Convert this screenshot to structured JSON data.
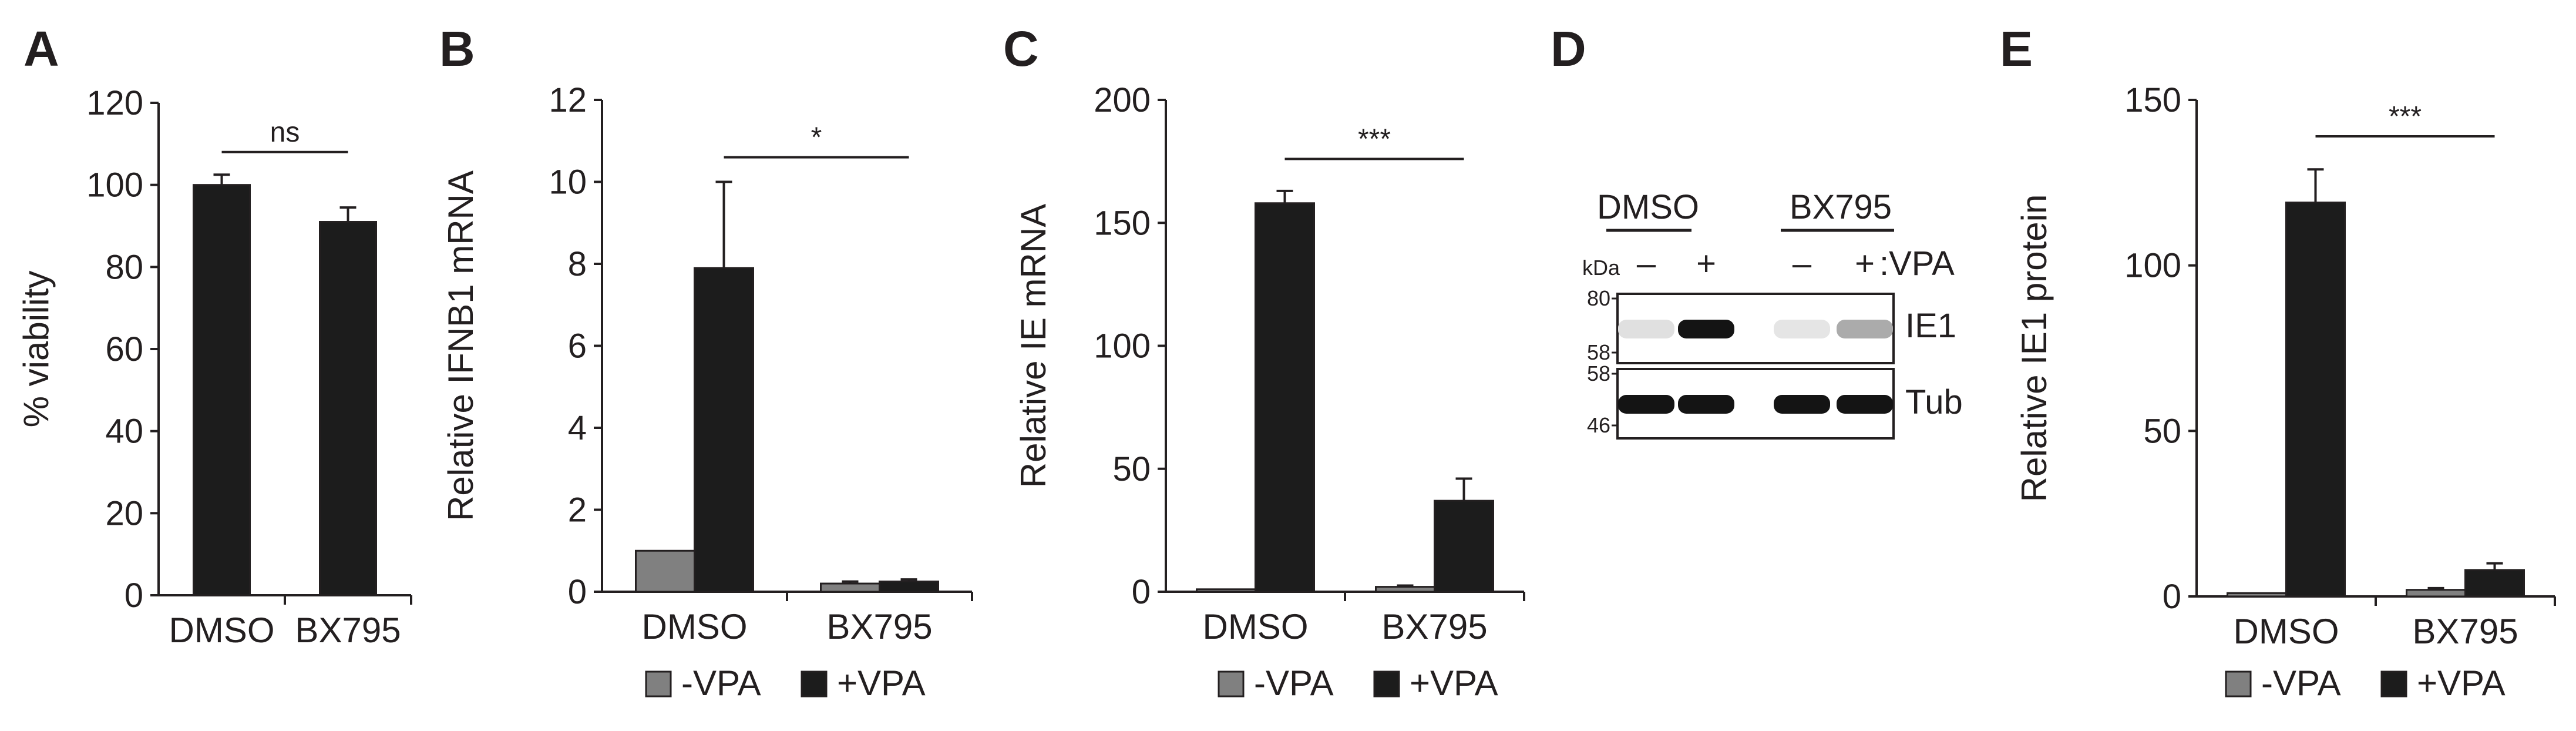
{
  "colors": {
    "plus_vpa": "#1c1c1c",
    "minus_vpa": "#808080",
    "axis": "#231f20",
    "background": "#ffffff"
  },
  "panels": {
    "A": {
      "label": "A"
    },
    "B": {
      "label": "B",
      "legend": [
        "-VPA",
        "+VPA"
      ]
    },
    "C": {
      "label": "C",
      "legend": [
        "-VPA",
        "+VPA"
      ]
    },
    "D": {
      "label": "D",
      "kda_label": "kDa",
      "groups": [
        "DMSO",
        "BX795"
      ],
      "lanes": [
        "–",
        "+",
        "–",
        "+"
      ],
      "treatment_label": ":VPA",
      "rows": [
        {
          "name": "IE1",
          "markers": [
            "80",
            "58"
          ],
          "intensities": [
            0.05,
            1.0,
            0.03,
            0.3
          ]
        },
        {
          "name": "Tub",
          "markers": [
            "58",
            "46"
          ],
          "intensities": [
            1.0,
            1.0,
            1.0,
            1.0
          ]
        }
      ]
    },
    "E": {
      "label": "E",
      "legend": [
        "-VPA",
        "+VPA"
      ]
    }
  },
  "chart_data": [
    {
      "panel": "A",
      "type": "bar",
      "title": "",
      "ylabel": "% viability",
      "xlabel": "",
      "ylim": [
        0,
        120
      ],
      "yticks": [
        "0",
        "20",
        "40",
        "60",
        "80",
        "100",
        "120"
      ],
      "categories": [
        "DMSO",
        "BX795"
      ],
      "series": [
        {
          "name": "+VPA",
          "values": [
            100,
            91
          ],
          "errors": [
            2.5,
            3.5
          ]
        }
      ],
      "significance": {
        "groups": [
          "DMSO",
          "BX795"
        ],
        "label": "ns"
      }
    },
    {
      "panel": "B",
      "type": "bar",
      "title": "",
      "ylabel": "Relative IFNB1 mRNA",
      "xlabel": "",
      "ylim": [
        0,
        12
      ],
      "yticks": [
        "0",
        "2",
        "4",
        "6",
        "8",
        "10",
        "12"
      ],
      "categories": [
        "DMSO",
        "BX795"
      ],
      "series": [
        {
          "name": "-VPA",
          "values": [
            1.0,
            0.2
          ],
          "errors": [
            0.0,
            0.05
          ]
        },
        {
          "name": "+VPA",
          "values": [
            7.9,
            0.25
          ],
          "errors": [
            2.1,
            0.05
          ]
        }
      ],
      "significance": {
        "groups": [
          "DMSO",
          "BX795"
        ],
        "label": "*"
      }
    },
    {
      "panel": "C",
      "type": "bar",
      "title": "",
      "ylabel": "Relative IE mRNA",
      "xlabel": "",
      "ylim": [
        0,
        200
      ],
      "yticks": [
        "0",
        "50",
        "100",
        "150",
        "200"
      ],
      "categories": [
        "DMSO",
        "BX795"
      ],
      "series": [
        {
          "name": "-VPA",
          "values": [
            1,
            2
          ],
          "errors": [
            0,
            0.5
          ]
        },
        {
          "name": "+VPA",
          "values": [
            158,
            37
          ],
          "errors": [
            5,
            9
          ]
        }
      ],
      "significance": {
        "groups": [
          "DMSO",
          "BX795"
        ],
        "label": "***"
      }
    },
    {
      "panel": "E",
      "type": "bar",
      "title": "",
      "ylabel": "Relative IE1 protein",
      "xlabel": "",
      "ylim": [
        0,
        150
      ],
      "yticks": [
        "0",
        "50",
        "100",
        "150"
      ],
      "categories": [
        "DMSO",
        "BX795"
      ],
      "series": [
        {
          "name": "-VPA",
          "values": [
            1,
            2
          ],
          "errors": [
            0,
            0.5
          ]
        },
        {
          "name": "+VPA",
          "values": [
            119,
            8
          ],
          "errors": [
            10,
            2
          ]
        }
      ],
      "significance": {
        "groups": [
          "DMSO",
          "BX795"
        ],
        "label": "***"
      }
    }
  ]
}
